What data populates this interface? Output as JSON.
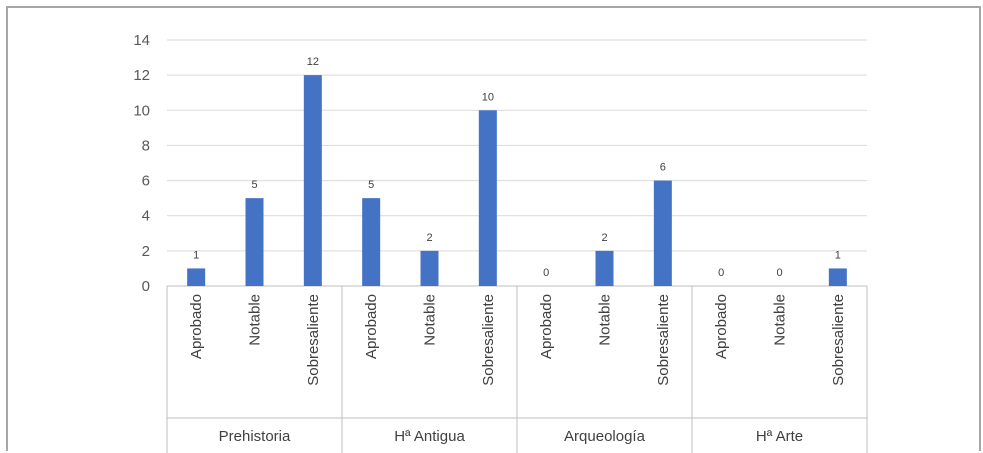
{
  "chart_data": {
    "type": "bar",
    "title": "",
    "xlabel": "",
    "ylabel": "",
    "ylim": [
      0,
      14
    ],
    "yticks": [
      0,
      2,
      4,
      6,
      8,
      10,
      12,
      14
    ],
    "grid": true,
    "legend": "none",
    "bar_color": "#4472c4",
    "groups": [
      {
        "name": "Prehistoria",
        "categories": [
          "Aprobado",
          "Notable",
          "Sobresaliente"
        ],
        "values": [
          1,
          5,
          12
        ]
      },
      {
        "name": "Hª Antigua",
        "categories": [
          "Aprobado",
          "Notable",
          "Sobresaliente"
        ],
        "values": [
          5,
          2,
          10
        ]
      },
      {
        "name": "Arqueología",
        "categories": [
          "Aprobado",
          "Notable",
          "Sobresaliente"
        ],
        "values": [
          0,
          2,
          6
        ]
      },
      {
        "name": "Hª Arte",
        "categories": [
          "Aprobado",
          "Notable",
          "Sobresaliente"
        ],
        "values": [
          0,
          0,
          1
        ]
      }
    ]
  }
}
